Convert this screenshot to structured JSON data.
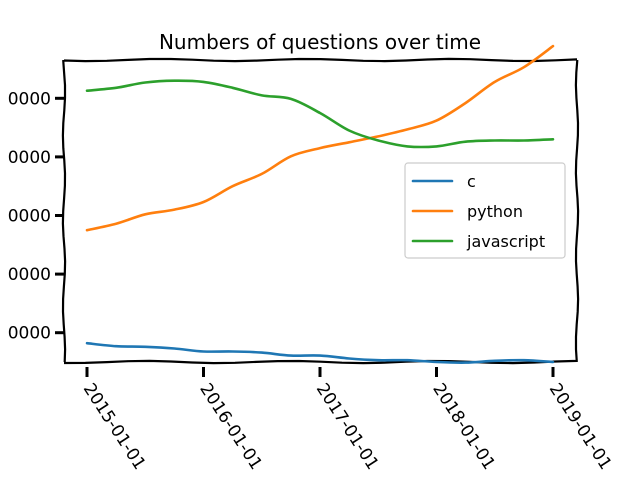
{
  "chart_data": {
    "type": "line",
    "title": "Numbers of questions over time",
    "xlabel": "",
    "ylabel": "",
    "x": [
      "2015-01-01",
      "2015-04-01",
      "2015-07-01",
      "2015-10-01",
      "2016-01-01",
      "2016-04-01",
      "2016-07-01",
      "2016-10-01",
      "2017-01-01",
      "2017-04-01",
      "2017-07-01",
      "2017-10-01",
      "2018-01-01",
      "2018-04-01",
      "2018-07-01",
      "2018-10-01",
      "2019-01-01"
    ],
    "xtick_labels": [
      "2015-01-01",
      "2016-01-01",
      "2017-01-01",
      "2018-01-01",
      "2019-01-01"
    ],
    "ytick_labels": [
      "0000",
      "0000",
      "0000",
      "0000",
      "0000"
    ],
    "ytick_values": [
      10000,
      20000,
      30000,
      40000,
      50000
    ],
    "ylim": [
      3000,
      55000
    ],
    "series": [
      {
        "name": "c",
        "color": "#1f77b4",
        "values": [
          8200,
          7700,
          7600,
          7300,
          6800,
          6800,
          6600,
          6100,
          6100,
          5600,
          5300,
          5300,
          5000,
          4900,
          5200,
          5300,
          5000
        ]
      },
      {
        "name": "python",
        "color": "#ff7f0e",
        "values": [
          27500,
          28600,
          30200,
          31000,
          32300,
          35000,
          37100,
          40100,
          41500,
          42500,
          43500,
          44700,
          46200,
          49200,
          52800,
          55300,
          58900
        ]
      },
      {
        "name": "javascript",
        "color": "#2ca02c",
        "values": [
          51300,
          51800,
          52700,
          53000,
          52800,
          51800,
          50500,
          49900,
          47500,
          44500,
          42800,
          41800,
          41800,
          42600,
          42800,
          42800,
          43000
        ]
      }
    ],
    "legend_position": "center-right",
    "grid": false
  }
}
